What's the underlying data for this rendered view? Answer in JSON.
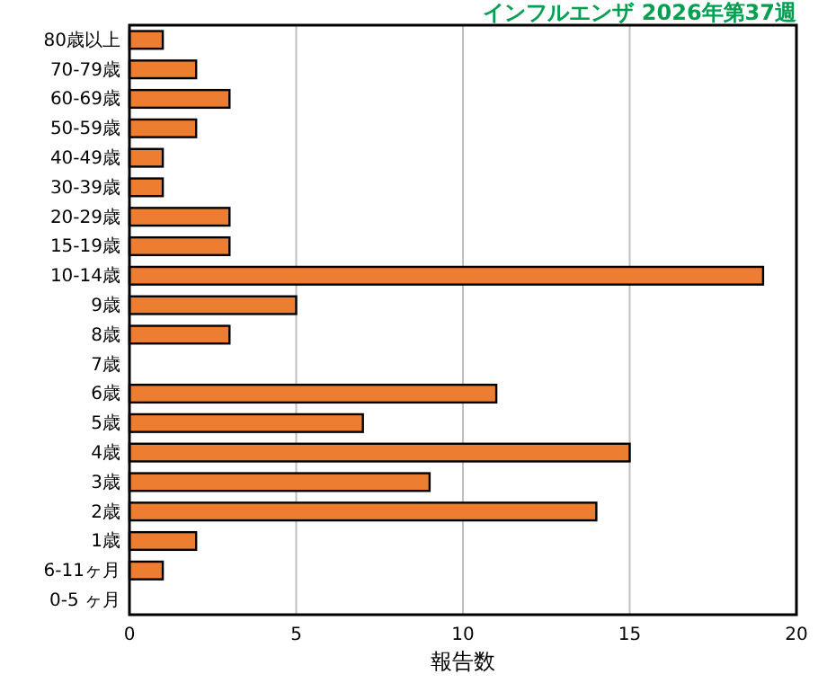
{
  "chart_data": {
    "type": "bar",
    "orientation": "horizontal",
    "title": "インフルエンザ 2026年第37週",
    "xlabel": "報告数",
    "categories": [
      "80歳以上",
      "70-79歳",
      "60-69歳",
      "50-59歳",
      "40-49歳",
      "30-39歳",
      "20-29歳",
      "15-19歳",
      "10-14歳",
      "9歳",
      "8歳",
      "7歳",
      "6歳",
      "5歳",
      "4歳",
      "3歳",
      "2歳",
      "1歳",
      "6-11ヶ月",
      "0-5 ヶ月"
    ],
    "values": [
      1,
      2,
      3,
      2,
      1,
      1,
      3,
      3,
      19,
      5,
      3,
      0,
      11,
      7,
      15,
      9,
      14,
      2,
      1,
      0
    ],
    "color": "#ed7d31",
    "xlim": [
      0,
      20
    ],
    "xticks": [
      0,
      5,
      10,
      15,
      20
    ],
    "grid": "x"
  }
}
